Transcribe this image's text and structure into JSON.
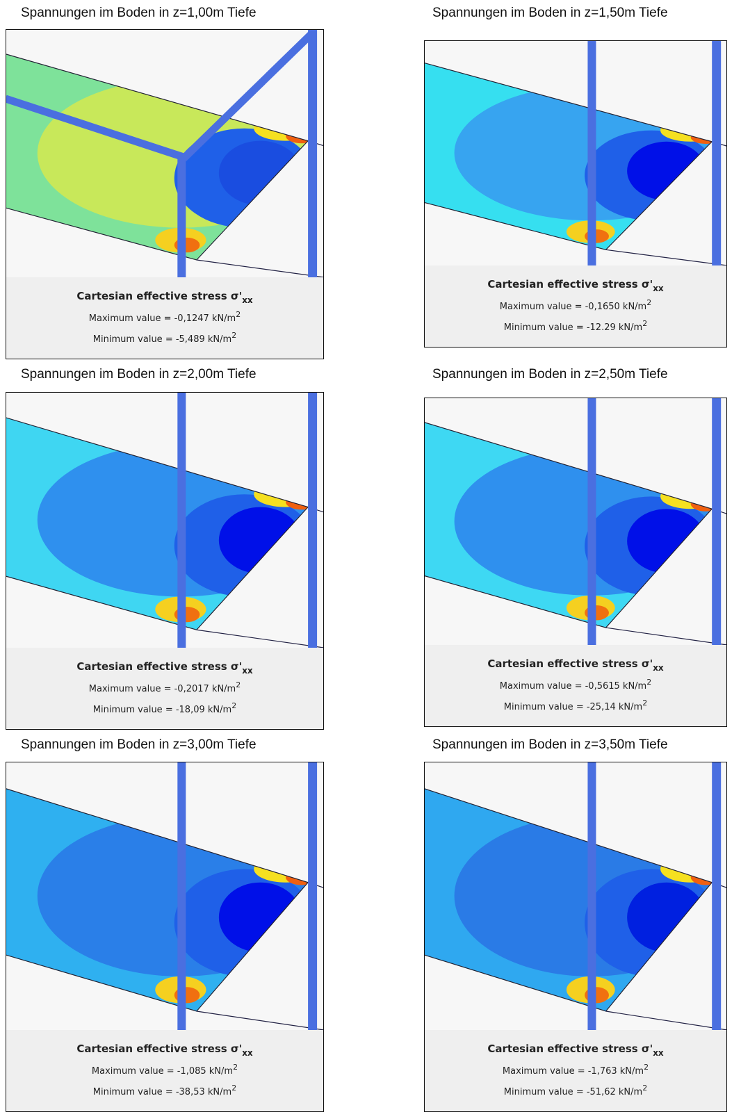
{
  "panels": [
    {
      "caption": "Spannungen im Boden in z=1,00m Tiefe",
      "legend_title": "Cartesian effective stress σ'",
      "legend_subscript": "xx",
      "max_label": "Maximum value = -0,1247 kN/m",
      "max_sup": "2",
      "min_label": "Minimum value = -5,489 kN/m",
      "min_sup": "2"
    },
    {
      "caption": "Spannungen im Boden in z=1,50m Tiefe",
      "legend_title": "Cartesian effective stress σ'",
      "legend_subscript": "xx",
      "max_label": "Maximum value = -0,1650 kN/m",
      "max_sup": "2",
      "min_label": "Minimum value = -12.29 kN/m",
      "min_sup": "2"
    },
    {
      "caption": "Spannungen im Boden in z=2,00m Tiefe",
      "legend_title": "Cartesian effective stress σ'",
      "legend_subscript": "xx",
      "max_label": "Maximum value = -0,2017 kN/m",
      "max_sup": "2",
      "min_label": "Minimum value = -18,09 kN/m",
      "min_sup": "2"
    },
    {
      "caption": "Spannungen im Boden in z=2,50m Tiefe",
      "legend_title": "Cartesian effective stress σ'",
      "legend_subscript": "xx",
      "max_label": "Maximum value = -0,5615 kN/m",
      "max_sup": "2",
      "min_label": "Minimum value = -25,14 kN/m",
      "min_sup": "2"
    },
    {
      "caption": "Spannungen im Boden in z=3,00m Tiefe",
      "legend_title": "Cartesian effective stress σ'",
      "legend_subscript": "xx",
      "max_label": "Maximum value = -1,085 kN/m",
      "max_sup": "2",
      "min_label": "Minimum value = -38,53 kN/m",
      "min_sup": "2"
    },
    {
      "caption": "Spannungen im Boden in z=3,50m Tiefe",
      "legend_title": "Cartesian effective stress σ'",
      "legend_subscript": "xx",
      "max_label": "Maximum value = -1,763 kN/m",
      "max_sup": "2",
      "min_label": "Minimum value = -51,62 kN/m",
      "min_sup": "2"
    }
  ]
}
